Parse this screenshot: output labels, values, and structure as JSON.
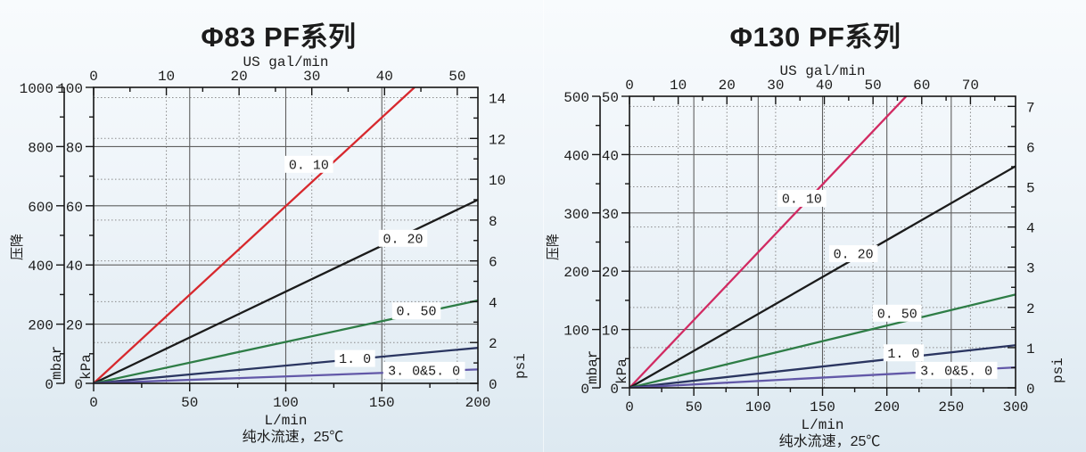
{
  "page": {
    "background_top": "#f8fbfd",
    "background_bottom": "#dde9f1",
    "title_color": "#6ab54a",
    "axis_color": "#151515",
    "solid_grid_color": "#5f5f5f",
    "dotted_grid_color": "#8c8c8c",
    "label_box_color": "#ffffff",
    "text_color": "#1c1c1c"
  },
  "chart_data": [
    {
      "type": "line",
      "title": "Φ83 PF系列",
      "caption": "纯水流速，25℃",
      "y_title": "压降",
      "x_axis_bottom": {
        "label": "L/min",
        "range": [
          0,
          200
        ],
        "major_ticks": [
          0,
          50,
          100,
          150,
          200
        ],
        "minor_step": 25
      },
      "x_axis_top": {
        "label": "US gal/min",
        "major_ticks": [
          0,
          10,
          20,
          30,
          40,
          50
        ],
        "minor_step": 5,
        "lmin_per_unit": 3.785
      },
      "y_axis_kpa": {
        "label": "kPa",
        "range": [
          0,
          100
        ],
        "major_ticks": [
          0,
          20,
          40,
          60,
          80,
          100
        ],
        "minor_step": 10
      },
      "y_axis_mbar": {
        "label": "mbar",
        "range": [
          0,
          1000
        ],
        "major_ticks": [
          0,
          200,
          400,
          600,
          800,
          1000
        ],
        "minor_step": 100
      },
      "y_axis_psi": {
        "label": "psi",
        "major_ticks": [
          0,
          2,
          4,
          6,
          8,
          10,
          12,
          14
        ],
        "minor_step": 1,
        "kpa_per_unit": 6.895
      },
      "series": [
        {
          "label": "0. 10",
          "color": "#d7282d",
          "points_lmin_kpa": [
            [
              0,
              0
            ],
            [
              167,
              100
            ]
          ],
          "label_center_lmin_kpa": [
            112,
            74
          ]
        },
        {
          "label": "0. 20",
          "color": "#1b1b1b",
          "points_lmin_kpa": [
            [
              0,
              0
            ],
            [
              200,
              62
            ]
          ],
          "label_center_lmin_kpa": [
            161,
            49
          ]
        },
        {
          "label": "0. 50",
          "color": "#2e7d46",
          "points_lmin_kpa": [
            [
              0,
              0
            ],
            [
              200,
              28
            ]
          ],
          "label_center_lmin_kpa": [
            168,
            24.5
          ]
        },
        {
          "label": "1. 0",
          "color": "#2a3560",
          "points_lmin_kpa": [
            [
              0,
              0
            ],
            [
              200,
              12
            ]
          ],
          "label_center_lmin_kpa": [
            136,
            8.4
          ]
        },
        {
          "label": "3. 0&5. 0",
          "color": "#6258a8",
          "points_lmin_kpa": [
            [
              0,
              0
            ],
            [
              200,
              4.7
            ]
          ],
          "label_center_lmin_kpa": [
            172,
            4.4
          ]
        }
      ]
    },
    {
      "type": "line",
      "title": "Φ130 PF系列",
      "caption": "纯水流速，25℃",
      "y_title": "压降",
      "x_axis_bottom": {
        "label": "L/min",
        "range": [
          0,
          300
        ],
        "major_ticks": [
          0,
          50,
          100,
          150,
          200,
          250,
          300
        ],
        "minor_step": 25
      },
      "x_axis_top": {
        "label": "US gal/min",
        "major_ticks": [
          0,
          10,
          20,
          30,
          40,
          50,
          60,
          70
        ],
        "minor_step": 5,
        "lmin_per_unit": 3.785
      },
      "y_axis_kpa": {
        "label": "kPa",
        "range": [
          0,
          50
        ],
        "major_ticks": [
          0,
          10,
          20,
          30,
          40,
          50
        ],
        "minor_step": 5
      },
      "y_axis_mbar": {
        "label": "mbar",
        "range": [
          0,
          500
        ],
        "major_ticks": [
          0,
          100,
          200,
          300,
          400,
          500
        ],
        "minor_step": 50
      },
      "y_axis_psi": {
        "label": "psi",
        "major_ticks": [
          0,
          1,
          2,
          3,
          4,
          5,
          6,
          7
        ],
        "minor_step": 0.5,
        "kpa_per_unit": 6.895
      },
      "series": [
        {
          "label": "0. 10",
          "color": "#d12a62",
          "points_lmin_kpa": [
            [
              0,
              0
            ],
            [
              215,
              50
            ]
          ],
          "label_center_lmin_kpa": [
            134,
            32.5
          ]
        },
        {
          "label": "0. 20",
          "color": "#1b1b1b",
          "points_lmin_kpa": [
            [
              0,
              0
            ],
            [
              300,
              38
            ]
          ],
          "label_center_lmin_kpa": [
            174,
            23
          ]
        },
        {
          "label": "0. 50",
          "color": "#2e7d46",
          "points_lmin_kpa": [
            [
              0,
              0
            ],
            [
              300,
              16
            ]
          ],
          "label_center_lmin_kpa": [
            208,
            12.8
          ]
        },
        {
          "label": "1. 0",
          "color": "#2a3560",
          "points_lmin_kpa": [
            [
              0,
              0
            ],
            [
              300,
              7.3
            ]
          ],
          "label_center_lmin_kpa": [
            213,
            6.0
          ]
        },
        {
          "label": "3. 0&5. 0",
          "color": "#6258a8",
          "points_lmin_kpa": [
            [
              0,
              0
            ],
            [
              300,
              3.5
            ]
          ],
          "label_center_lmin_kpa": [
            254,
            3.0
          ]
        }
      ]
    }
  ]
}
